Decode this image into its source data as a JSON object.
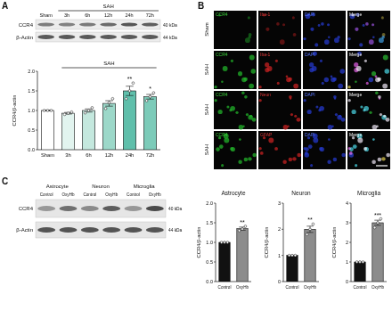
{
  "chart_data": [
    {
      "type": "bar",
      "y_label": "CCR4/β-actin",
      "categories": [
        "Sham",
        "3h",
        "6h",
        "12h",
        "24h",
        "72h"
      ],
      "values": [
        1.0,
        0.93,
        1.0,
        1.18,
        1.5,
        1.35
      ],
      "errors": [
        0.01,
        0.02,
        0.04,
        0.07,
        0.12,
        0.06
      ],
      "points": [
        [
          1.0,
          1.0,
          1.0
        ],
        [
          0.9,
          0.93,
          0.96
        ],
        [
          0.94,
          1.0,
          1.07
        ],
        [
          1.05,
          1.2,
          1.3
        ],
        [
          1.3,
          1.5,
          1.7
        ],
        [
          1.25,
          1.35,
          1.45
        ]
      ],
      "colors": [
        "#ffffff",
        "#e2f4ef",
        "#c4e8de",
        "#9cd8c9",
        "#5fbfab",
        "#7ccbb9"
      ],
      "ylim": [
        0,
        2.0
      ],
      "yticks": [
        {
          "value": 0,
          "label": "0.0"
        },
        0.5,
        {
          "value": 1.0,
          "label": "1.0"
        },
        1.5,
        {
          "value": 2.0,
          "label": "2.0"
        }
      ],
      "annotations": [
        {
          "text": "SAH",
          "from": "3h",
          "to": "72h"
        },
        {
          "text": "**",
          "category": "24h"
        },
        {
          "text": "*",
          "category": "72h"
        }
      ],
      "grid": false
    },
    {
      "type": "bar",
      "title": "Astrocyte",
      "y_label": "CCR4/β-actin",
      "categories": [
        "Control",
        "OxyHb"
      ],
      "values": [
        1.0,
        1.35
      ],
      "errors": [
        0.01,
        0.04
      ],
      "points": [
        [
          1.0,
          1.0,
          1.0
        ],
        [
          1.3,
          1.34,
          1.41
        ]
      ],
      "colors": [
        "#111111",
        "#8c8c8c"
      ],
      "ylim": [
        0,
        2.0
      ],
      "yticks": [
        {
          "value": 0,
          "label": "0.0"
        },
        0.5,
        {
          "value": 1.0,
          "label": "1.0"
        },
        1.5,
        {
          "value": 2.0,
          "label": "2.0"
        }
      ],
      "annotations": [
        {
          "text": "**",
          "category": "OxyHb"
        }
      ],
      "grid": false
    },
    {
      "type": "bar",
      "title": "Neuron",
      "y_label": "CCR4/β-actin",
      "categories": [
        "Control",
        "OxyHb"
      ],
      "values": [
        1.0,
        2.0
      ],
      "errors": [
        0.01,
        0.12
      ],
      "points": [
        [
          1.0,
          1.0,
          1.0
        ],
        [
          1.8,
          2.0,
          2.2
        ]
      ],
      "colors": [
        "#111111",
        "#8c8c8c"
      ],
      "ylim": [
        0,
        3
      ],
      "yticks": [
        0,
        1,
        2,
        3
      ],
      "annotations": [
        {
          "text": "**",
          "category": "OxyHb"
        }
      ],
      "grid": false
    },
    {
      "type": "bar",
      "title": "Microglia",
      "y_label": "CCR4/β-actin",
      "categories": [
        "Control",
        "OxyHb"
      ],
      "values": [
        1.0,
        3.0
      ],
      "errors": [
        0.01,
        0.13
      ],
      "points": [
        [
          1.0,
          1.0,
          1.0
        ],
        [
          2.75,
          3.0,
          3.2
        ]
      ],
      "colors": [
        "#111111",
        "#8c8c8c"
      ],
      "ylim": [
        0,
        4
      ],
      "yticks": [
        0,
        1,
        2,
        3,
        4
      ],
      "annotations": [
        {
          "text": "***",
          "category": "OxyHb"
        }
      ],
      "grid": false
    }
  ],
  "panel_labels": [
    "A",
    "B",
    "C"
  ],
  "blot_a": {
    "group": "SAH",
    "lanes": [
      "Sham",
      "3h",
      "6h",
      "12h",
      "24h",
      "72h"
    ],
    "rows": [
      {
        "label": "CCR4",
        "size": "40 kDa"
      },
      {
        "label": "β-Actin",
        "size": "44 kDa"
      }
    ]
  },
  "panel_b": {
    "rows": [
      {
        "label": "Sham",
        "channels": [
          "CCR4",
          "Iba-1",
          "DAPI",
          "Merge"
        ]
      },
      {
        "label": "SAH",
        "channels": [
          "CCR4",
          "Iba-1",
          "DAPI",
          "Merge"
        ]
      },
      {
        "label": "SAH",
        "channels": [
          "CCR4",
          "Neun",
          "DAPI",
          "Merge"
        ]
      },
      {
        "label": "SAH",
        "channels": [
          "CCR4",
          "GFAP",
          "DAPI",
          "Merge"
        ]
      }
    ]
  },
  "blot_c": {
    "groups": [
      {
        "label": "Astrocyte",
        "lanes": [
          "Control",
          "OxyHb"
        ]
      },
      {
        "label": "Neuron",
        "lanes": [
          "Control",
          "OxyHb"
        ]
      },
      {
        "label": "Microglia",
        "lanes": [
          "Control",
          "OxyHb"
        ]
      }
    ],
    "rows": [
      {
        "label": "CCR4",
        "size": "40 kDa"
      },
      {
        "label": "β-Actin",
        "size": "44 kDa"
      }
    ]
  }
}
